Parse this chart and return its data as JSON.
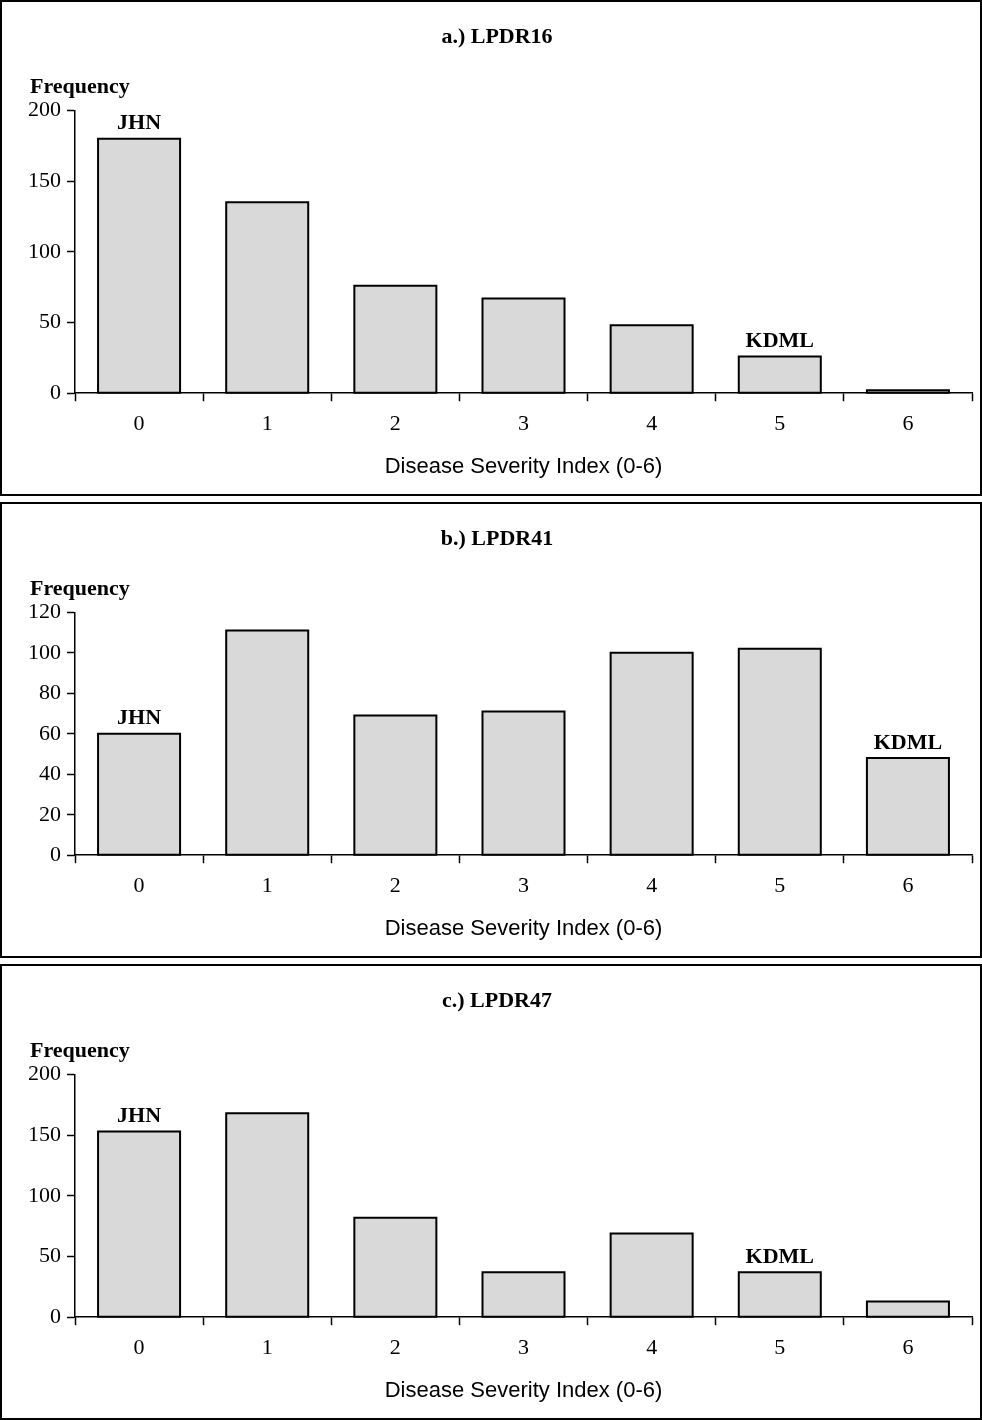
{
  "chart_data": [
    {
      "type": "bar",
      "title": "a.) LPDR16",
      "ylabel": "Frequency",
      "xlabel": "Disease Severity Index (0-6)",
      "categories": [
        "0",
        "1",
        "2",
        "3",
        "4",
        "5",
        "6"
      ],
      "values": [
        180,
        135,
        76,
        67,
        48,
        26,
        2
      ],
      "color": "#d9d9d9",
      "ylim": [
        0,
        200
      ],
      "yticks": [
        0,
        50,
        100,
        150,
        200
      ],
      "grid": false,
      "legend": false,
      "annotations": [
        {
          "text": "JHN",
          "x": "0",
          "y": 180
        },
        {
          "text": "KDML",
          "x": "5",
          "y": 26
        }
      ]
    },
    {
      "type": "bar",
      "title": "b.) LPDR41",
      "ylabel": "Frequency",
      "xlabel": "Disease Severity Index (0-6)",
      "categories": [
        "0",
        "1",
        "2",
        "3",
        "4",
        "5",
        "6"
      ],
      "values": [
        60,
        111,
        69,
        71,
        100,
        102,
        48
      ],
      "color": "#d9d9d9",
      "ylim": [
        0,
        120
      ],
      "yticks": [
        0,
        20,
        40,
        60,
        80,
        100,
        120
      ],
      "grid": false,
      "legend": false,
      "annotations": [
        {
          "text": "JHN",
          "x": "0",
          "y": 60
        },
        {
          "text": "KDML",
          "x": "6",
          "y": 48
        }
      ]
    },
    {
      "type": "bar",
      "title": "c.) LPDR47",
      "ylabel": "Frequency",
      "xlabel": "Disease Severity Index (0-6)",
      "categories": [
        "0",
        "1",
        "2",
        "3",
        "4",
        "5",
        "6"
      ],
      "values": [
        153,
        168,
        82,
        37,
        69,
        37,
        13
      ],
      "color": "#d9d9d9",
      "ylim": [
        0,
        200
      ],
      "yticks": [
        0,
        50,
        100,
        150,
        200
      ],
      "grid": false,
      "legend": false,
      "annotations": [
        {
          "text": "JHN",
          "x": "0",
          "y": 153
        },
        {
          "text": "KDML",
          "x": "5",
          "y": 37
        }
      ]
    }
  ]
}
